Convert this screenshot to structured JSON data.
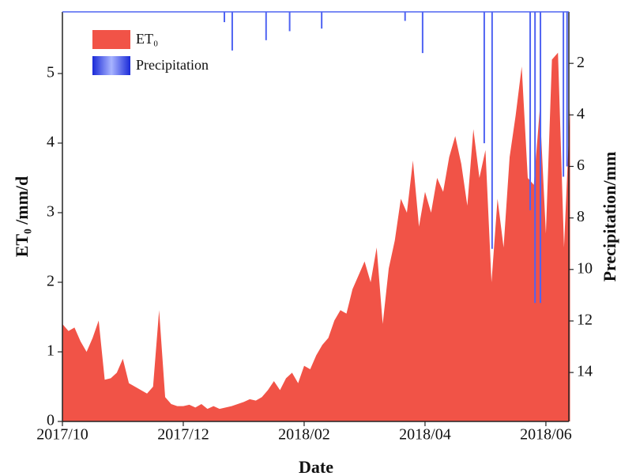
{
  "chart_data": {
    "type": "area",
    "x_label": "Date",
    "y_label": "ET₀ /mm/d",
    "y2_label": "Precipitation/mm",
    "xlim": [
      0,
      8.38
    ],
    "xticks": [
      {
        "value": 0,
        "label": "2017/10"
      },
      {
        "value": 2,
        "label": "2017/12"
      },
      {
        "value": 4,
        "label": "2018/02"
      },
      {
        "value": 6,
        "label": "2018/04"
      },
      {
        "value": 8,
        "label": "2018/06"
      }
    ],
    "ylim": [
      0,
      5.886
    ],
    "yticks": [
      0,
      1,
      2,
      3,
      4,
      5
    ],
    "y2lim": [
      0,
      15.9
    ],
    "y2ticks": [
      2,
      4,
      6,
      8,
      10,
      12,
      14
    ],
    "y2_inverted": true,
    "legend": "upper left",
    "series": [
      {
        "name": "ET₀",
        "type": "area",
        "color": "#f15347",
        "x": [
          0,
          0.1,
          0.2,
          0.3,
          0.4,
          0.5,
          0.6,
          0.7,
          0.8,
          0.9,
          1.0,
          1.1,
          1.2,
          1.3,
          1.4,
          1.5,
          1.6,
          1.7,
          1.8,
          1.9,
          2.0,
          2.1,
          2.2,
          2.3,
          2.4,
          2.5,
          2.6,
          2.7,
          2.8,
          2.9,
          3.0,
          3.1,
          3.2,
          3.3,
          3.4,
          3.5,
          3.6,
          3.7,
          3.8,
          3.9,
          4.0,
          4.1,
          4.2,
          4.3,
          4.4,
          4.5,
          4.6,
          4.7,
          4.8,
          4.9,
          5.0,
          5.1,
          5.2,
          5.3,
          5.4,
          5.5,
          5.6,
          5.7,
          5.8,
          5.9,
          6.0,
          6.1,
          6.2,
          6.3,
          6.4,
          6.5,
          6.6,
          6.7,
          6.8,
          6.9,
          7.0,
          7.1,
          7.2,
          7.3,
          7.4,
          7.5,
          7.6,
          7.7,
          7.8,
          7.9,
          8.0,
          8.1,
          8.2,
          8.3,
          8.4
        ],
        "values": [
          1.4,
          1.3,
          1.35,
          1.15,
          1.0,
          1.2,
          1.45,
          0.6,
          0.62,
          0.7,
          0.9,
          0.55,
          0.5,
          0.45,
          0.4,
          0.5,
          1.6,
          0.35,
          0.25,
          0.22,
          0.22,
          0.24,
          0.2,
          0.25,
          0.18,
          0.22,
          0.18,
          0.2,
          0.22,
          0.25,
          0.28,
          0.32,
          0.3,
          0.35,
          0.45,
          0.58,
          0.45,
          0.62,
          0.7,
          0.55,
          0.8,
          0.75,
          0.95,
          1.1,
          1.2,
          1.45,
          1.6,
          1.55,
          1.9,
          2.1,
          2.3,
          2.0,
          2.5,
          1.4,
          2.2,
          2.6,
          3.2,
          3.0,
          3.75,
          2.8,
          3.3,
          3.0,
          3.5,
          3.3,
          3.8,
          4.1,
          3.7,
          3.1,
          4.2,
          3.5,
          3.9,
          2.0,
          3.2,
          2.5,
          3.8,
          4.4,
          5.1,
          3.5,
          3.4,
          4.5,
          2.7,
          5.2,
          5.3,
          2.5,
          4.5
        ]
      },
      {
        "name": "Precipitation",
        "type": "bar",
        "axis": "y2",
        "color": "#4f63f2",
        "x": [
          2.68,
          2.81,
          3.37,
          3.76,
          4.29,
          5.67,
          5.96,
          6.98,
          7.11,
          7.74,
          7.82,
          7.91,
          8.29,
          8.35
        ],
        "values": [
          0.4,
          1.5,
          1.1,
          0.75,
          0.65,
          0.35,
          1.6,
          5.1,
          9.2,
          7.7,
          11.3,
          11.3,
          6.4,
          6.0
        ]
      }
    ]
  }
}
